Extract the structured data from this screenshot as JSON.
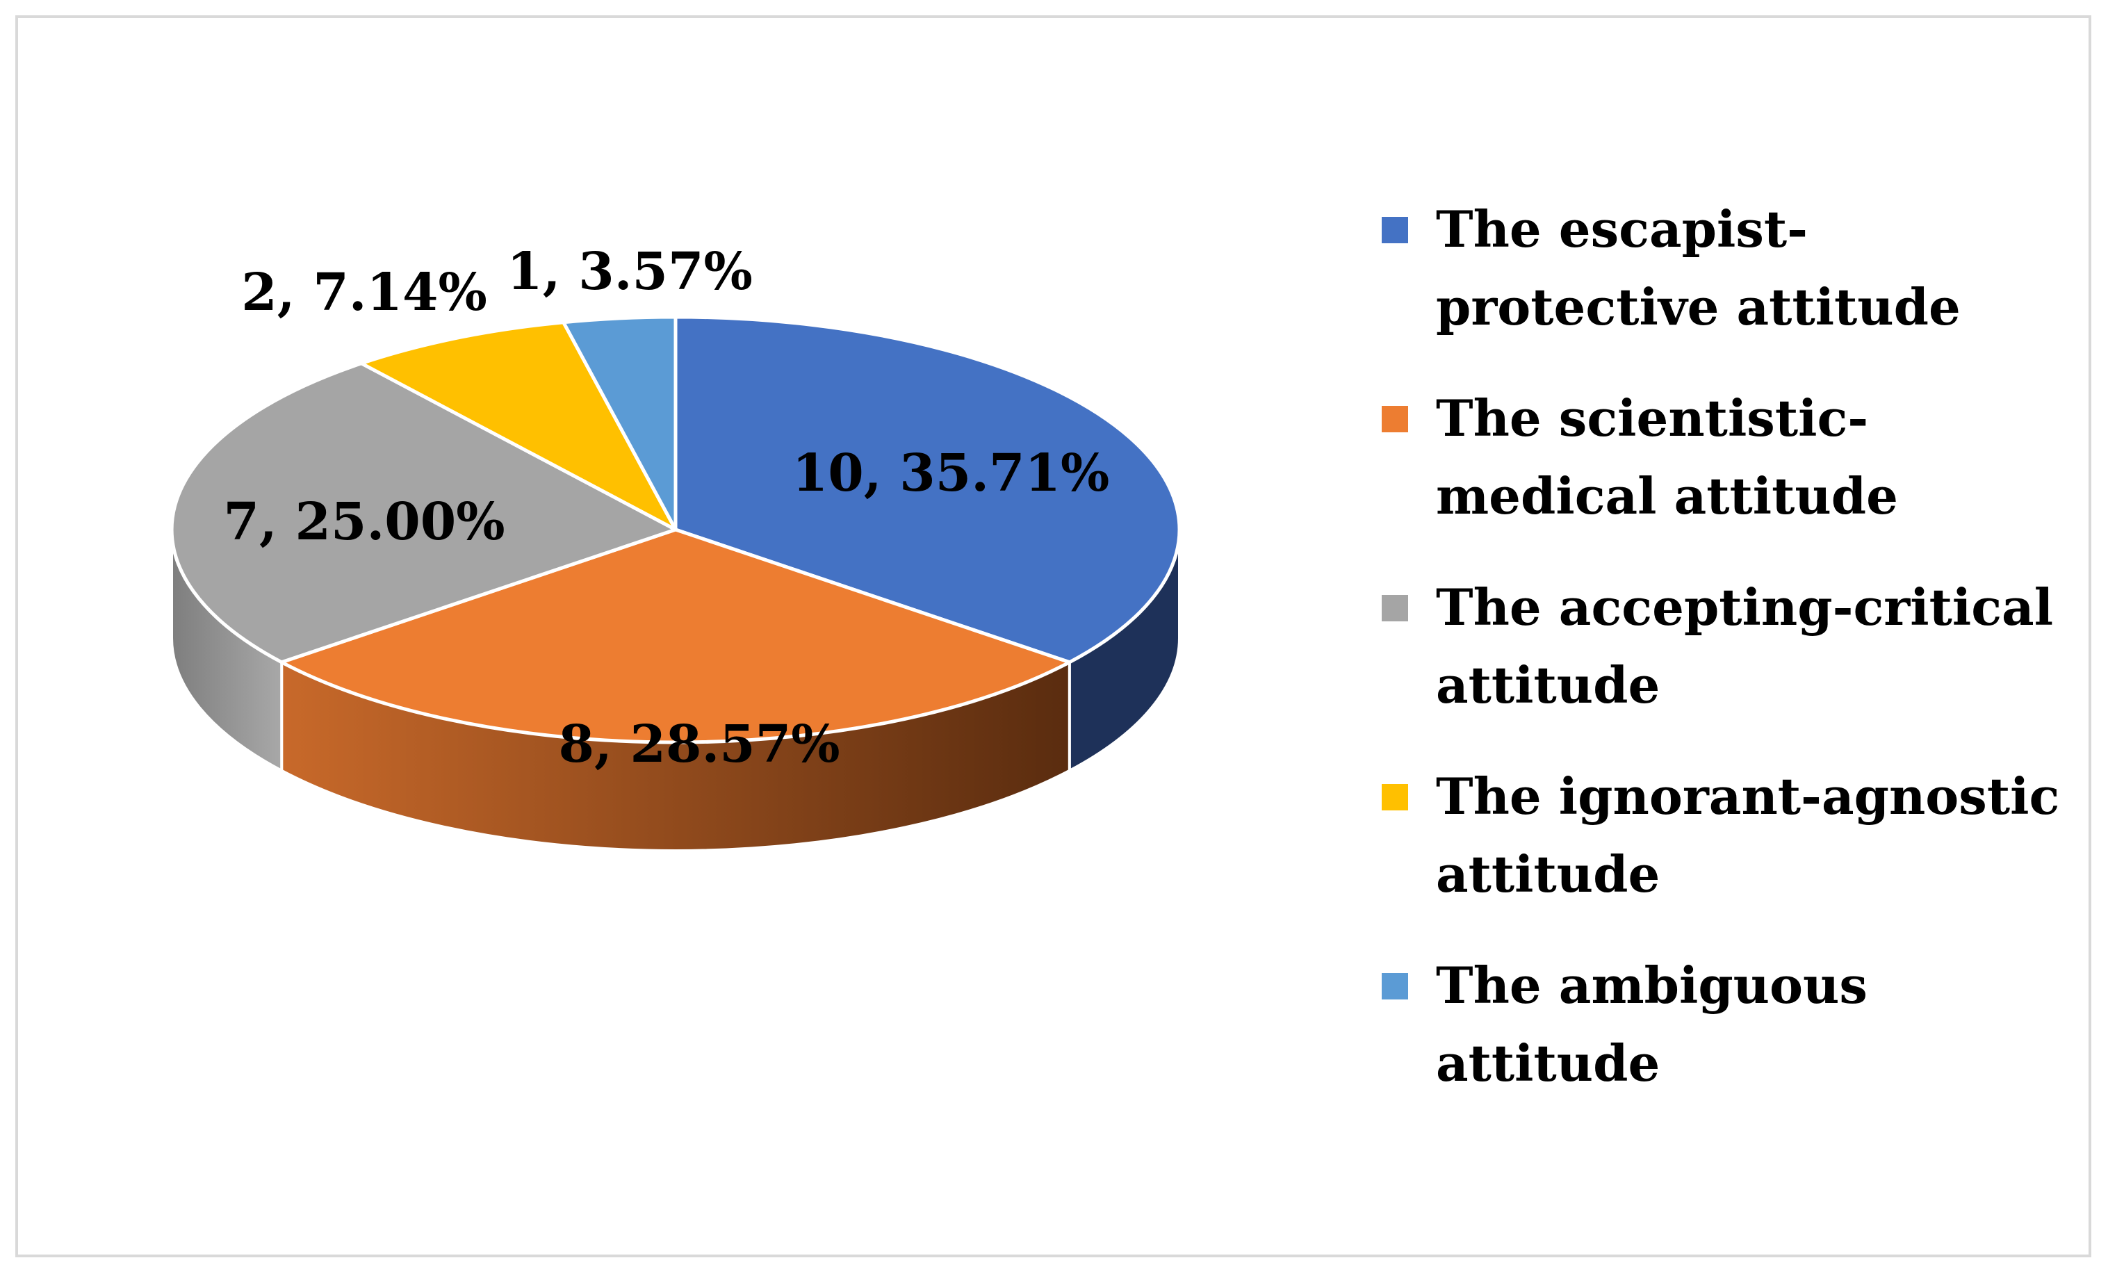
{
  "chart_data": {
    "type": "pie",
    "style": "3d",
    "categories": [
      "The escapist-protective attitude",
      "The scientistic-medical attitude",
      "The accepting-critical attitude",
      "The ignorant-agnostic attitude",
      "The ambiguous attitude"
    ],
    "values": [
      10,
      8,
      7,
      2,
      1
    ],
    "percentages": [
      35.71,
      28.57,
      25.0,
      7.14,
      3.57
    ],
    "data_labels": [
      "10, 35.71%",
      "8, 28.57%",
      "7, 25.00%",
      "2, 7.14%",
      "1, 3.57%"
    ],
    "colors": [
      "#4472c4",
      "#ed7d31",
      "#a5a5a5",
      "#ffc000",
      "#5b9bd5"
    ],
    "side_colors": [
      "#1e3159",
      "#5c2e10",
      "#8a8a8a",
      "#b38600",
      "#2f6496"
    ],
    "legend_position": "right",
    "title": ""
  }
}
